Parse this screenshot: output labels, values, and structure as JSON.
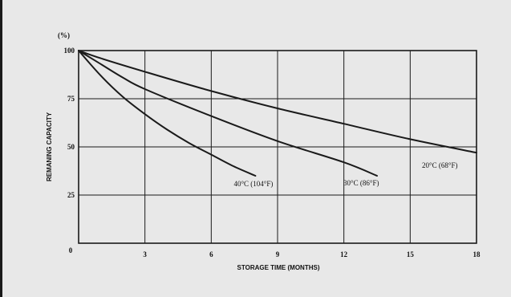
{
  "chart_data": {
    "type": "line",
    "title": "",
    "xlabel": "STORAGE TIME (MONTHS)",
    "ylabel": "REMANING CAPACITY",
    "y_unit": "(%)",
    "xlim": [
      0,
      18
    ],
    "ylim": [
      0,
      100
    ],
    "x_ticks": [
      0,
      3,
      6,
      9,
      12,
      15,
      18
    ],
    "x_tick_labels": [
      "0",
      "3",
      "6",
      "9",
      "12",
      "15",
      "18"
    ],
    "y_ticks": [
      25,
      50,
      75,
      100
    ],
    "y_tick_labels": [
      "25",
      "50",
      "75",
      "100"
    ],
    "grid": true,
    "legend": "none (series labeled directly on curves)",
    "colors": {
      "background": "#e8e8e8",
      "line": "#1a1a1a",
      "grid": "#1a1a1a"
    },
    "series": [
      {
        "name": "20°C (68°F)",
        "x": [
          0,
          1,
          3,
          6,
          9,
          12,
          15,
          18
        ],
        "y": [
          100,
          96,
          89,
          79,
          70,
          62,
          54,
          47
        ]
      },
      {
        "name": "30°C (86°F)",
        "x": [
          0,
          1,
          2,
          3,
          6,
          9,
          12,
          13.5
        ],
        "y": [
          100,
          93,
          86,
          80,
          66,
          53,
          42,
          35
        ]
      },
      {
        "name": "40°C (104°F)",
        "x": [
          0,
          1,
          2,
          3,
          4,
          5,
          6,
          7,
          8
        ],
        "y": [
          100,
          87,
          76,
          67,
          59,
          52,
          46,
          40,
          35
        ]
      }
    ]
  }
}
